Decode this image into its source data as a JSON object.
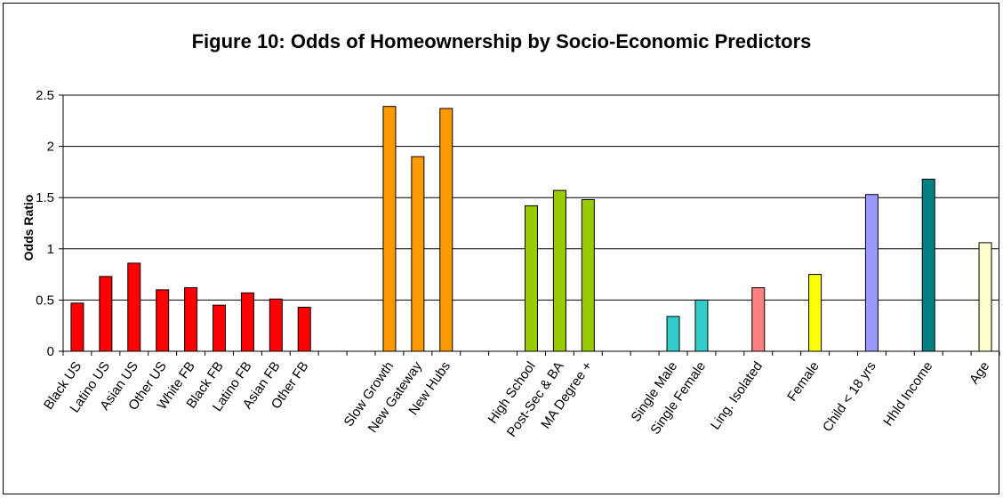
{
  "chart_data": {
    "type": "bar",
    "title": "Figure 10: Odds of Homeownership by Socio-Economic Predictors",
    "xlabel": "",
    "ylabel": "Odds Ratio",
    "ylim": [
      0,
      2.5
    ],
    "yticks": [
      "0",
      "0.5",
      "1",
      "1.5",
      "2",
      "2.5"
    ],
    "grid": true,
    "categories": [
      "Black US",
      "Latino US",
      "Asian US",
      "Other US",
      "White FB",
      "Black FB",
      "Latino FB",
      "Asian FB",
      "Other FB",
      "",
      "",
      "Slow Growth",
      "New Gateway",
      "New Hubs",
      "",
      "",
      "High School",
      "Post-Sec & BA",
      "MA Degree +",
      "",
      "",
      "Single Male",
      "Single Female",
      "",
      "Ling. Isolated",
      "",
      "Female",
      "",
      "Child < 18 yrs",
      "",
      "Hhld Income",
      "",
      "Age"
    ],
    "values": [
      0.47,
      0.73,
      0.86,
      0.6,
      0.62,
      0.45,
      0.57,
      0.51,
      0.43,
      null,
      null,
      2.39,
      1.9,
      2.37,
      null,
      null,
      1.42,
      1.57,
      1.48,
      null,
      null,
      0.34,
      0.5,
      null,
      0.62,
      null,
      0.75,
      null,
      1.53,
      null,
      1.68,
      null,
      1.06
    ],
    "colors": [
      "#ff0000",
      "#ff0000",
      "#ff0000",
      "#ff0000",
      "#ff0000",
      "#ff0000",
      "#ff0000",
      "#ff0000",
      "#ff0000",
      "",
      "",
      "#ff9900",
      "#ff9900",
      "#ff9900",
      "",
      "",
      "#99cc00",
      "#99cc00",
      "#99cc00",
      "",
      "",
      "#33cccc",
      "#33cccc",
      "",
      "#ff8080",
      "",
      "#ffff00",
      "",
      "#9999ff",
      "",
      "#008080",
      "",
      "#ffffcc"
    ]
  }
}
